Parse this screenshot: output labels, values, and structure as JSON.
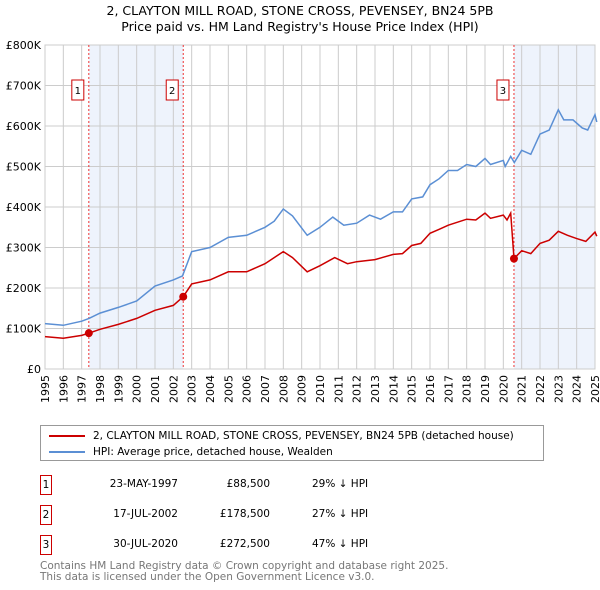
{
  "chart_data": {
    "type": "line",
    "title": "2, CLAYTON MILL ROAD, STONE CROSS, PEVENSEY, BN24 5PB",
    "subtitle": "Price paid vs. HM Land Registry's House Price Index (HPI)",
    "xlim": [
      1995,
      2025
    ],
    "ylim": [
      0,
      800000
    ],
    "x_ticks": [
      "1995",
      "1996",
      "1997",
      "1998",
      "1999",
      "2000",
      "2001",
      "2002",
      "2003",
      "2004",
      "2005",
      "2006",
      "2007",
      "2008",
      "2009",
      "2010",
      "2011",
      "2012",
      "2013",
      "2014",
      "2015",
      "2016",
      "2017",
      "2018",
      "2019",
      "2020",
      "2021",
      "2022",
      "2023",
      "2024",
      "2025"
    ],
    "y_ticks": [
      {
        "v": 0,
        "label": "£0"
      },
      {
        "v": 100000,
        "label": "£100K"
      },
      {
        "v": 200000,
        "label": "£200K"
      },
      {
        "v": 300000,
        "label": "£300K"
      },
      {
        "v": 400000,
        "label": "£400K"
      },
      {
        "v": 500000,
        "label": "£500K"
      },
      {
        "v": 600000,
        "label": "£600K"
      },
      {
        "v": 700000,
        "label": "£700K"
      },
      {
        "v": 800000,
        "label": "£800K"
      }
    ],
    "grid": true,
    "series": [
      {
        "name": "2, CLAYTON MILL ROAD, STONE CROSS, PEVENSEY, BN24 5PB (detached house)",
        "color": "#cc0000",
        "x": [
          1995,
          1996,
          1997,
          1997.39,
          1998,
          1999,
          2000,
          2001,
          2002,
          2002.54,
          2003,
          2004,
          2005,
          2006,
          2007,
          2008,
          2008.5,
          2009.3,
          2010,
          2010.8,
          2011.5,
          2012,
          2013,
          2014,
          2014.5,
          2015,
          2015.5,
          2016,
          2016.5,
          2017,
          2018,
          2018.5,
          2019,
          2019.3,
          2020,
          2020.2,
          2020.4,
          2020.58,
          2021,
          2021.5,
          2022,
          2022.5,
          2023,
          2023.5,
          2024,
          2024.5,
          2025,
          2025.1
        ],
        "y": [
          80000,
          76000,
          83000,
          88500,
          98000,
          110000,
          125000,
          145000,
          157000,
          178500,
          210000,
          220000,
          240000,
          240000,
          260000,
          290000,
          275000,
          240000,
          255000,
          275000,
          260000,
          265000,
          270000,
          283000,
          285000,
          305000,
          310000,
          335000,
          345000,
          355000,
          370000,
          368000,
          385000,
          372000,
          380000,
          368000,
          385000,
          272500,
          292000,
          285000,
          310000,
          318000,
          340000,
          330000,
          322000,
          315000,
          338000,
          328000
        ]
      },
      {
        "name": "HPI: Average price, detached house, Wealden",
        "color": "#5b8fd4",
        "x": [
          1995,
          1996,
          1997,
          1997.4,
          1998,
          1999,
          2000,
          2001,
          2002,
          2002.5,
          2003,
          2004,
          2005,
          2006,
          2007,
          2007.5,
          2008,
          2008.5,
          2009.3,
          2010,
          2010.7,
          2011.3,
          2012,
          2012.7,
          2013.3,
          2014,
          2014.5,
          2015,
          2015.6,
          2016,
          2016.5,
          2017,
          2017.5,
          2018,
          2018.5,
          2019,
          2019.3,
          2020,
          2020.1,
          2020.4,
          2020.6,
          2021,
          2021.5,
          2022,
          2022.5,
          2023,
          2023.3,
          2023.8,
          2024.3,
          2024.6,
          2025,
          2025.1
        ],
        "y": [
          112000,
          108000,
          118000,
          125000,
          138000,
          152000,
          168000,
          205000,
          220000,
          230000,
          290000,
          300000,
          325000,
          330000,
          350000,
          365000,
          395000,
          378000,
          330000,
          350000,
          375000,
          355000,
          360000,
          380000,
          370000,
          388000,
          388000,
          420000,
          425000,
          455000,
          470000,
          490000,
          490000,
          505000,
          500000,
          520000,
          505000,
          515000,
          500000,
          525000,
          510000,
          540000,
          530000,
          580000,
          590000,
          640000,
          615000,
          615000,
          595000,
          590000,
          628000,
          610000
        ]
      }
    ],
    "sales": [
      {
        "n": "1",
        "x": 1997.39,
        "y": 88500
      },
      {
        "n": "2",
        "x": 2002.54,
        "y": 178500
      },
      {
        "n": "3",
        "x": 2020.58,
        "y": 272500
      }
    ],
    "shaded": [
      [
        1997.39,
        2002.54
      ],
      [
        2020.58,
        2025
      ]
    ]
  },
  "legend": {
    "property": "2, CLAYTON MILL ROAD, STONE CROSS, PEVENSEY, BN24 5PB (detached house)",
    "hpi": "HPI: Average price, detached house, Wealden"
  },
  "sales_table": [
    {
      "n": "1",
      "date": "23-MAY-1997",
      "price": "£88,500",
      "hpi": "29% ↓ HPI"
    },
    {
      "n": "2",
      "date": "17-JUL-2002",
      "price": "£178,500",
      "hpi": "27% ↓ HPI"
    },
    {
      "n": "3",
      "date": "30-JUL-2020",
      "price": "£272,500",
      "hpi": "47% ↓ HPI"
    }
  ],
  "footer": {
    "line1": "Contains HM Land Registry data © Crown copyright and database right 2025.",
    "line2": "This data is licensed under the Open Government Licence v3.0."
  }
}
